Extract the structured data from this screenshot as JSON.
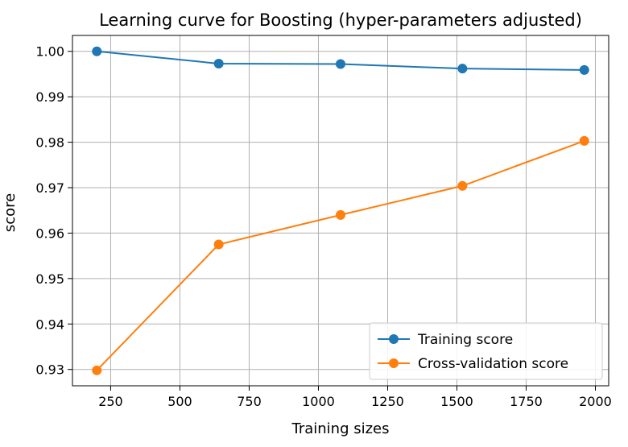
{
  "chart_data": {
    "type": "line",
    "title": "Learning curve for Boosting (hyper-parameters adjusted)",
    "xlabel": "Training sizes",
    "ylabel": "score",
    "x": [
      200,
      640,
      1080,
      1520,
      1960
    ],
    "series": [
      {
        "name": "Training score",
        "color": "#1f77b4",
        "values": [
          1.0,
          0.9973,
          0.9972,
          0.9962,
          0.9959
        ]
      },
      {
        "name": "Cross-validation score",
        "color": "#ff7f0e",
        "values": [
          0.9298,
          0.9575,
          0.964,
          0.9704,
          0.9803
        ]
      }
    ],
    "xticks": [
      250,
      500,
      750,
      1000,
      1250,
      1500,
      1750,
      2000
    ],
    "xtick_labels": [
      "250",
      "500",
      "750",
      "1000",
      "1250",
      "1500",
      "1750",
      "2000"
    ],
    "yticks": [
      0.93,
      0.94,
      0.95,
      0.96,
      0.97,
      0.98,
      0.99,
      1.0
    ],
    "ytick_labels": [
      "0.93",
      "0.94",
      "0.95",
      "0.96",
      "0.97",
      "0.98",
      "0.99",
      "1.00"
    ],
    "xlim": [
      112,
      2048
    ],
    "ylim": [
      0.9264,
      1.0035
    ],
    "grid": true,
    "legend_position": "lower-right",
    "marker": "circle"
  }
}
